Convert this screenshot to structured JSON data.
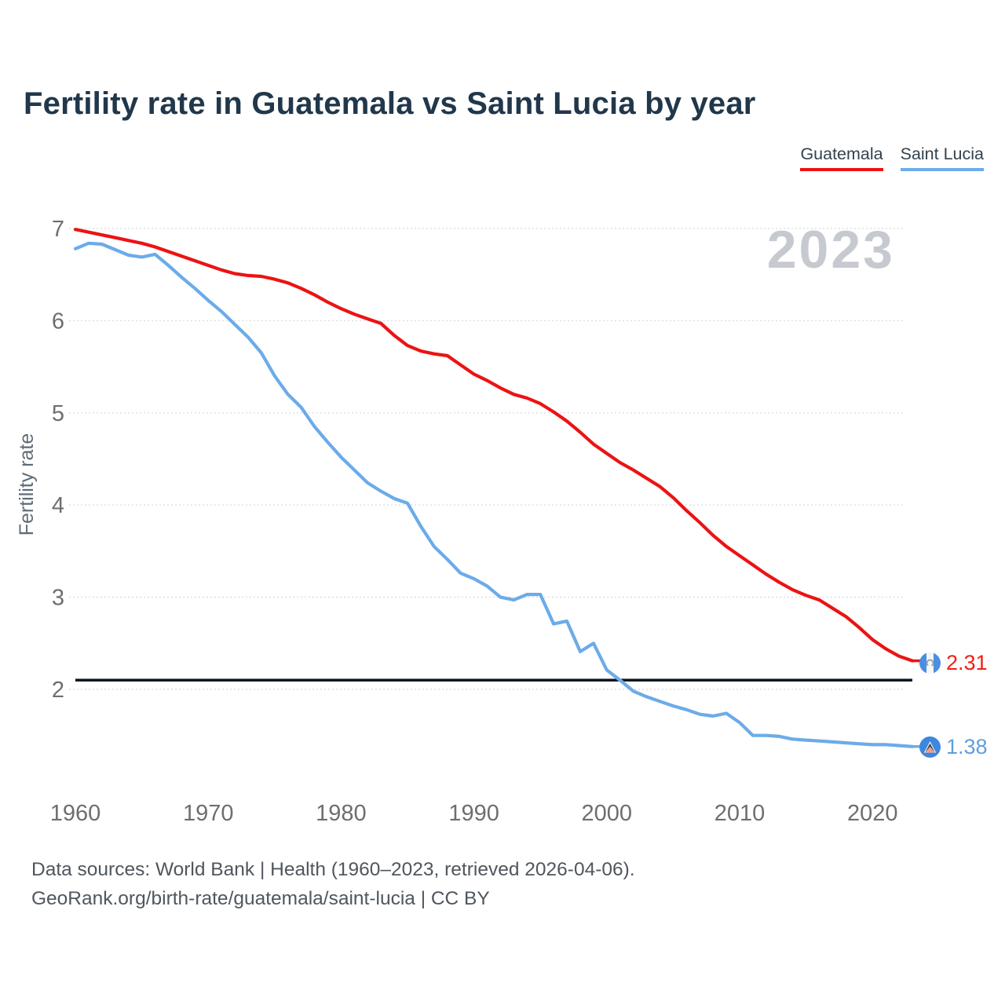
{
  "title": "Fertility rate in Guatemala vs Saint Lucia by year",
  "watermark": "2023",
  "legend": {
    "items": [
      {
        "label": "Guatemala",
        "color": "#ee1111"
      },
      {
        "label": "Saint Lucia",
        "color": "#6cabe9"
      }
    ]
  },
  "y_axis": {
    "label": "Fertility rate",
    "ticks": [
      "7",
      "6",
      "5",
      "4",
      "3",
      "2"
    ],
    "tick_values": [
      7,
      6,
      5,
      4,
      3,
      2
    ]
  },
  "x_axis": {
    "ticks": [
      "1960",
      "1970",
      "1980",
      "1990",
      "2000",
      "2010",
      "2020"
    ],
    "tick_values": [
      1960,
      1970,
      1980,
      1990,
      2000,
      2010,
      2020
    ]
  },
  "reference_line": {
    "value": 2.1,
    "color": "#0b1422"
  },
  "end_labels": {
    "guatemala": {
      "value": "2.31",
      "flag": "guatemala-flag-icon"
    },
    "saint_lucia": {
      "value": "1.38",
      "flag": "saint-lucia-flag-icon"
    }
  },
  "footer": {
    "line1": "Data sources: World Bank | Health (1960–2023, retrieved 2026-04-06).",
    "line2": "GeoRank.org/birth-rate/guatemala/saint-lucia | CC BY"
  },
  "colors": {
    "guatemala_line": "#ec1313",
    "saint_lucia_line": "#6cabe9",
    "gridline": "#dedede",
    "tick_text": "#6e6e6e",
    "watermark": "#c6cad0",
    "reference": "#0b1422"
  },
  "chart_data": {
    "type": "line",
    "title": "Fertility rate in Guatemala vs Saint Lucia by year",
    "xlabel": "",
    "ylabel": "Fertility rate",
    "xlim": [
      1960,
      2023
    ],
    "ylim": [
      1.2,
      7.05
    ],
    "grid": "horizontal",
    "legend_position": "top-right",
    "annotation_year": "2023",
    "reference_line_value": 2.1,
    "x": [
      1960,
      1961,
      1962,
      1963,
      1964,
      1965,
      1966,
      1967,
      1968,
      1969,
      1970,
      1971,
      1972,
      1973,
      1974,
      1975,
      1976,
      1977,
      1978,
      1979,
      1980,
      1981,
      1982,
      1983,
      1984,
      1985,
      1986,
      1987,
      1988,
      1989,
      1990,
      1991,
      1992,
      1993,
      1994,
      1995,
      1996,
      1997,
      1998,
      1999,
      2000,
      2001,
      2002,
      2003,
      2004,
      2005,
      2006,
      2007,
      2008,
      2009,
      2010,
      2011,
      2012,
      2013,
      2014,
      2015,
      2016,
      2017,
      2018,
      2019,
      2020,
      2021,
      2022,
      2023
    ],
    "series": [
      {
        "name": "Guatemala",
        "color": "#ec1313",
        "end_value": 2.31,
        "values": [
          6.99,
          6.96,
          6.93,
          6.9,
          6.87,
          6.84,
          6.8,
          6.75,
          6.7,
          6.65,
          6.6,
          6.55,
          6.51,
          6.49,
          6.48,
          6.45,
          6.41,
          6.35,
          6.28,
          6.2,
          6.13,
          6.07,
          6.02,
          5.97,
          5.84,
          5.73,
          5.67,
          5.64,
          5.62,
          5.52,
          5.42,
          5.35,
          5.27,
          5.2,
          5.16,
          5.1,
          5.01,
          4.91,
          4.79,
          4.66,
          4.56,
          4.46,
          4.38,
          4.29,
          4.2,
          4.08,
          3.94,
          3.81,
          3.67,
          3.55,
          3.45,
          3.35,
          3.25,
          3.16,
          3.08,
          3.02,
          2.97,
          2.88,
          2.79,
          2.67,
          2.54,
          2.44,
          2.36,
          2.31
        ]
      },
      {
        "name": "Saint Lucia",
        "color": "#6cabe9",
        "end_value": 1.38,
        "values": [
          6.78,
          6.84,
          6.83,
          6.77,
          6.71,
          6.69,
          6.72,
          6.6,
          6.47,
          6.35,
          6.22,
          6.1,
          5.96,
          5.82,
          5.65,
          5.4,
          5.2,
          5.06,
          4.85,
          4.68,
          4.52,
          4.38,
          4.24,
          4.15,
          4.07,
          4.02,
          3.77,
          3.55,
          3.41,
          3.26,
          3.2,
          3.12,
          3.0,
          2.97,
          3.03,
          3.03,
          2.71,
          2.74,
          2.41,
          2.5,
          2.21,
          2.1,
          1.98,
          1.92,
          1.87,
          1.82,
          1.78,
          1.73,
          1.71,
          1.74,
          1.64,
          1.5,
          1.5,
          1.49,
          1.46,
          1.45,
          1.44,
          1.43,
          1.42,
          1.41,
          1.4,
          1.4,
          1.39,
          1.38
        ]
      }
    ]
  }
}
